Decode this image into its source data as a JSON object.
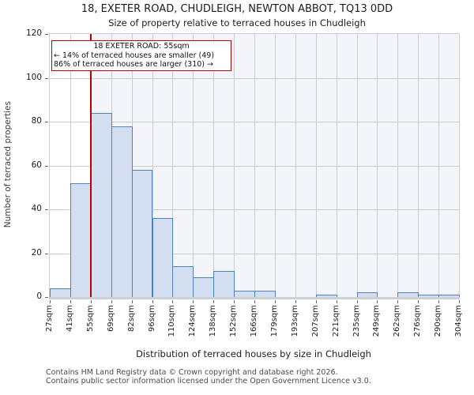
{
  "title": "18, EXETER ROAD, CHUDLEIGH, NEWTON ABBOT, TQ13 0DD",
  "subtitle": "Size of property relative to terraced houses in Chudleigh",
  "annotation": {
    "line1": "18 EXETER ROAD: 55sqm",
    "line2": "← 14% of terraced houses are smaller (49)",
    "line3": "86% of terraced houses are larger (310) →"
  },
  "footer": {
    "line1": "Contains HM Land Registry data © Crown copyright and database right 2026.",
    "line2": "Contains public sector information licensed under the Open Government Licence v3.0."
  },
  "chart_data": {
    "type": "bar",
    "title": "18, EXETER ROAD, CHUDLEIGH, NEWTON ABBOT, TQ13 0DD",
    "subtitle": "Size of property relative to terraced houses in Chudleigh",
    "categories": [
      "27sqm",
      "41sqm",
      "55sqm",
      "69sqm",
      "82sqm",
      "96sqm",
      "110sqm",
      "124sqm",
      "138sqm",
      "152sqm",
      "166sqm",
      "179sqm",
      "193sqm",
      "207sqm",
      "221sqm",
      "235sqm",
      "249sqm",
      "262sqm",
      "276sqm",
      "290sqm",
      "304sqm"
    ],
    "values": [
      4,
      52,
      84,
      78,
      58,
      36,
      14,
      9,
      12,
      3,
      3,
      0,
      0,
      1,
      0,
      2,
      0,
      2,
      1,
      1
    ],
    "xlabel": "Distribution of terraced houses by size in Chudleigh",
    "ylabel": "Number of terraced properties",
    "ylim": [
      0,
      120
    ],
    "yticks": [
      0,
      20,
      40,
      60,
      80,
      100,
      120
    ],
    "grid": true,
    "legend_position": "none",
    "marker": {
      "label": "18 EXETER ROAD: 55sqm",
      "tick_index": 2,
      "color": "#bb0000",
      "shade_right_of_marker": true
    },
    "colors": {
      "bar_fill": "#d3def1",
      "bar_stroke": "#4f81bd",
      "shade": "#f3f5fb",
      "grid": "#cccccc",
      "marker": "#bb0000"
    }
  }
}
